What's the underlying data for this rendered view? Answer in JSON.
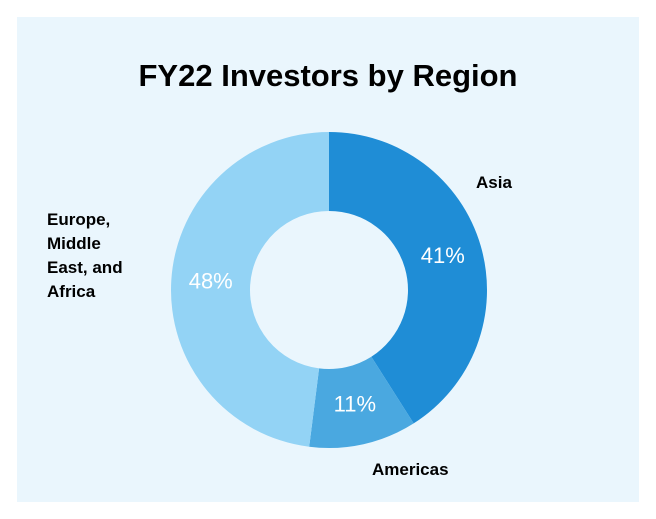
{
  "chart_data": {
    "type": "donut",
    "title": "FY22 Investors by Region",
    "categories": [
      "Asia",
      "Americas",
      "Europe, Middle East, and Africa"
    ],
    "values": [
      41,
      11,
      48
    ],
    "value_labels": [
      "41%",
      "11%",
      "48%"
    ],
    "colors": [
      "#1f8dd6",
      "#4aa8e0",
      "#93d3f5"
    ]
  }
}
